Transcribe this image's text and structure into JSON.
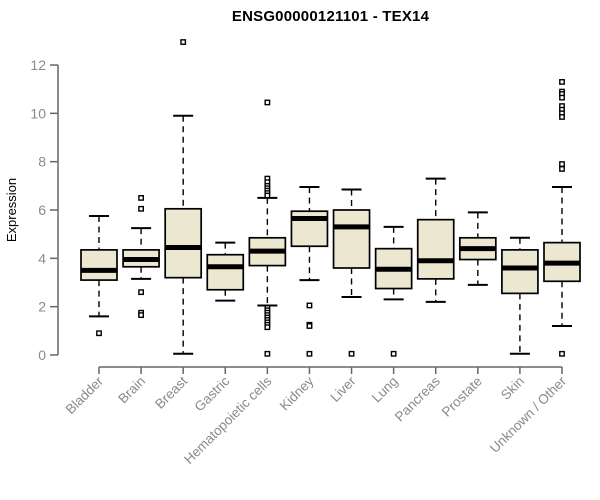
{
  "colors": {
    "box_fill": "#ece7d1",
    "box_border": "#000000",
    "median": "#000000",
    "whisker": "#000000",
    "axis": "#666666",
    "tick_label": "#8a8a8a",
    "title": "#000000",
    "background": "#ffffff"
  },
  "chart_data": {
    "type": "boxplot",
    "title": "ENSG00000121101 - TEX14",
    "ylabel": "Expression",
    "xlabel": "",
    "ylim": [
      0,
      12
    ],
    "yticks": [
      0,
      2,
      4,
      6,
      8,
      10,
      12
    ],
    "grid": false,
    "legend": null,
    "categories": [
      "Bladder",
      "Brain",
      "Breast",
      "Gastric",
      "Hematopoietic cells",
      "Kidney",
      "Liver",
      "Lung",
      "Pancreas",
      "Prostate",
      "Skin",
      "Unknown / Other"
    ],
    "boxes": [
      {
        "category": "Bladder",
        "whisker_low": 1.6,
        "q1": 3.1,
        "median": 3.5,
        "q3": 4.35,
        "whisker_high": 5.75,
        "outliers": [
          0.9
        ]
      },
      {
        "category": "Brain",
        "whisker_low": 3.15,
        "q1": 3.65,
        "median": 3.95,
        "q3": 4.35,
        "whisker_high": 5.25,
        "outliers": [
          6.5,
          6.05,
          2.6,
          1.75,
          1.65
        ]
      },
      {
        "category": "Breast",
        "whisker_low": 0.05,
        "q1": 3.2,
        "median": 4.45,
        "q3": 6.05,
        "whisker_high": 9.9,
        "outliers": [
          12.95
        ]
      },
      {
        "category": "Gastric",
        "whisker_low": 2.25,
        "q1": 2.7,
        "median": 3.65,
        "q3": 4.15,
        "whisker_high": 4.65,
        "outliers": []
      },
      {
        "category": "Hematopoietic cells",
        "whisker_low": 2.05,
        "q1": 3.7,
        "median": 4.3,
        "q3": 4.85,
        "whisker_high": 6.5,
        "outliers": [
          10.45,
          7.3,
          7.15,
          7.0,
          6.9,
          6.8,
          6.7,
          6.6,
          1.95,
          1.85,
          1.75,
          1.65,
          1.55,
          1.45,
          1.35,
          1.25,
          1.15,
          0.05
        ]
      },
      {
        "category": "Kidney",
        "whisker_low": 3.1,
        "q1": 4.5,
        "median": 5.65,
        "q3": 5.95,
        "whisker_high": 6.95,
        "outliers": [
          2.05,
          1.25,
          1.2,
          0.05
        ]
      },
      {
        "category": "Liver",
        "whisker_low": 2.4,
        "q1": 3.6,
        "median": 5.3,
        "q3": 6.0,
        "whisker_high": 6.85,
        "outliers": [
          0.05
        ]
      },
      {
        "category": "Lung",
        "whisker_low": 2.3,
        "q1": 2.75,
        "median": 3.55,
        "q3": 4.4,
        "whisker_high": 5.3,
        "outliers": [
          0.05
        ]
      },
      {
        "category": "Pancreas",
        "whisker_low": 2.2,
        "q1": 3.15,
        "median": 3.9,
        "q3": 5.6,
        "whisker_high": 7.3,
        "outliers": []
      },
      {
        "category": "Prostate",
        "whisker_low": 2.9,
        "q1": 3.95,
        "median": 4.4,
        "q3": 4.85,
        "whisker_high": 5.9,
        "outliers": []
      },
      {
        "category": "Skin",
        "whisker_low": 0.05,
        "q1": 2.55,
        "median": 3.6,
        "q3": 4.35,
        "whisker_high": 4.85,
        "outliers": []
      },
      {
        "category": "Unknown / Other",
        "whisker_low": 1.2,
        "q1": 3.05,
        "median": 3.8,
        "q3": 4.65,
        "whisker_high": 6.95,
        "outliers": [
          11.3,
          10.9,
          10.8,
          10.65,
          10.3,
          10.15,
          10.0,
          9.85,
          7.9,
          7.7,
          0.05
        ]
      }
    ]
  }
}
